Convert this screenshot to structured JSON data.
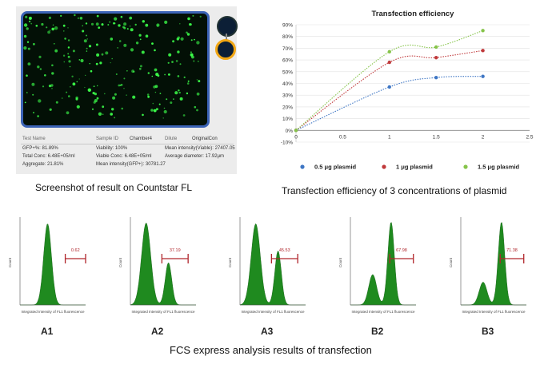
{
  "countstar": {
    "fields": {
      "test_name_label": "Test Name",
      "sample_id_label": "Sample ID",
      "chamber": "Chamber4",
      "dilute_label": "Dilute",
      "original": "OriginalCon",
      "gfp": "GFP+%: 81.89%",
      "viability": "Viability: 100%",
      "mean_int_viable": "Mean intensity(Viable): 27407.05",
      "total_conc": "Total Conc: 6.48E+05/ml",
      "viable_conc": "Viable Conc: 6.48E+05/ml",
      "avg_diameter": "Average diameter: 17.92μm",
      "aggregate": "Aggregate: 21.81%",
      "mean_int_gfp": "Mean intensity(GFP+): 30781.27"
    },
    "colors": {
      "frame": "#3b63b6",
      "cells": "#3cff4a",
      "selected_ring": "#f2a714"
    }
  },
  "captions": {
    "countstar": "Screenshot of result on Countstar FL",
    "transfection": "Transfection efficiency of  3 concentrations of plasmid",
    "fcs": "FCS express analysis results of transfection"
  },
  "chart_data": [
    {
      "type": "line",
      "title": "Transfection efficiency",
      "x": [
        0,
        1,
        1.5,
        2
      ],
      "xlim": [
        0,
        2.5
      ],
      "xticks": [
        "0",
        "0.5",
        "1",
        "1.5",
        "2",
        "2.5"
      ],
      "ylim": [
        -10,
        90
      ],
      "yticks": [
        "-10%",
        "0%",
        "10%",
        "20%",
        "30%",
        "40%",
        "50%",
        "60%",
        "70%",
        "80%",
        "90%"
      ],
      "series": [
        {
          "name": "0.5 μg plasmid",
          "color": "#3e76c4",
          "values": [
            0,
            37,
            45,
            46
          ]
        },
        {
          "name": "1 μg plasmid",
          "color": "#c0393b",
          "values": [
            0,
            58,
            62,
            68
          ]
        },
        {
          "name": "1.5 μg plasmid",
          "color": "#86c44a",
          "values": [
            0,
            67,
            71,
            85
          ]
        }
      ]
    },
    {
      "type": "histogram",
      "panels": [
        {
          "label": "A1",
          "gate_value": "0.62"
        },
        {
          "label": "A2",
          "gate_value": "37.19"
        },
        {
          "label": "A3",
          "gate_value": "45.53"
        },
        {
          "label": "B2",
          "gate_value": "67.98"
        },
        {
          "label": "B3",
          "gate_value": "71.38"
        }
      ],
      "ylabel": "Count",
      "xlabel": "Integrated Intensity of FL1 fluorescence",
      "fill_color": "#1f8a1f",
      "gate_color": "#b0262c"
    }
  ]
}
